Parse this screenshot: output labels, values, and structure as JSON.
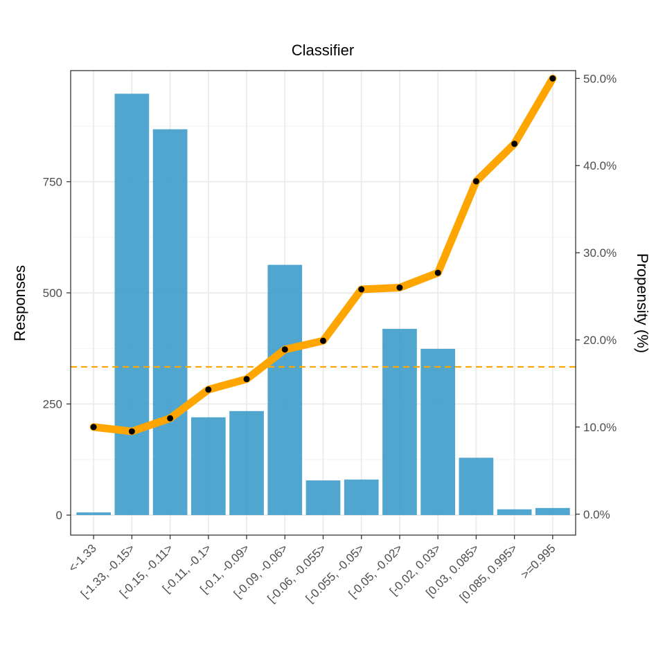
{
  "chart_data": {
    "type": "bar",
    "title": "Classifier",
    "xlabel": "",
    "ylabel": "Responses",
    "y2label": "Propensity (%)",
    "categories": [
      "<-1.33",
      "[-1.33, -0.15>",
      "[-0.15, -0.11>",
      "[-0.11, -0.1>",
      "[-0.1, -0.09>",
      "[-0.09, -0.06>",
      "[-0.06, -0.055>",
      "[-0.055, -0.05>",
      "[-0.05, -0.02>",
      "[-0.02, 0.03>",
      "[0.03, 0.085>",
      "[0.085, 0.995>",
      ">=0.995"
    ],
    "ylim": [
      -45,
      1000
    ],
    "y_ticks": [
      0,
      250,
      500,
      750
    ],
    "y_tick_labels": [
      "0",
      "250",
      "500",
      "750"
    ],
    "y2lim": [
      -2.4,
      50.9
    ],
    "y2_ticks": [
      0,
      10,
      20,
      30,
      40,
      50
    ],
    "y2_tick_labels": [
      "0.0%",
      "10.0%",
      "20.0%",
      "30.0%",
      "40.0%",
      "50.0%"
    ],
    "series": [
      {
        "type": "bar",
        "axis": "left",
        "color": "#3d9cca",
        "values": [
          6,
          948,
          868,
          220,
          234,
          563,
          78,
          80,
          419,
          374,
          129,
          13,
          16
        ]
      },
      {
        "type": "line",
        "axis": "right",
        "color": "#ffa500",
        "marker_color": "#000000",
        "values": [
          10.0,
          9.5,
          11.0,
          14.3,
          15.5,
          18.9,
          19.9,
          25.8,
          26.0,
          27.7,
          38.2,
          42.5,
          50.0
        ]
      }
    ],
    "reference_line": {
      "axis": "right",
      "value": 16.9,
      "style": "dashed",
      "color": "#ffa500"
    },
    "grid": true,
    "legend": "none"
  }
}
